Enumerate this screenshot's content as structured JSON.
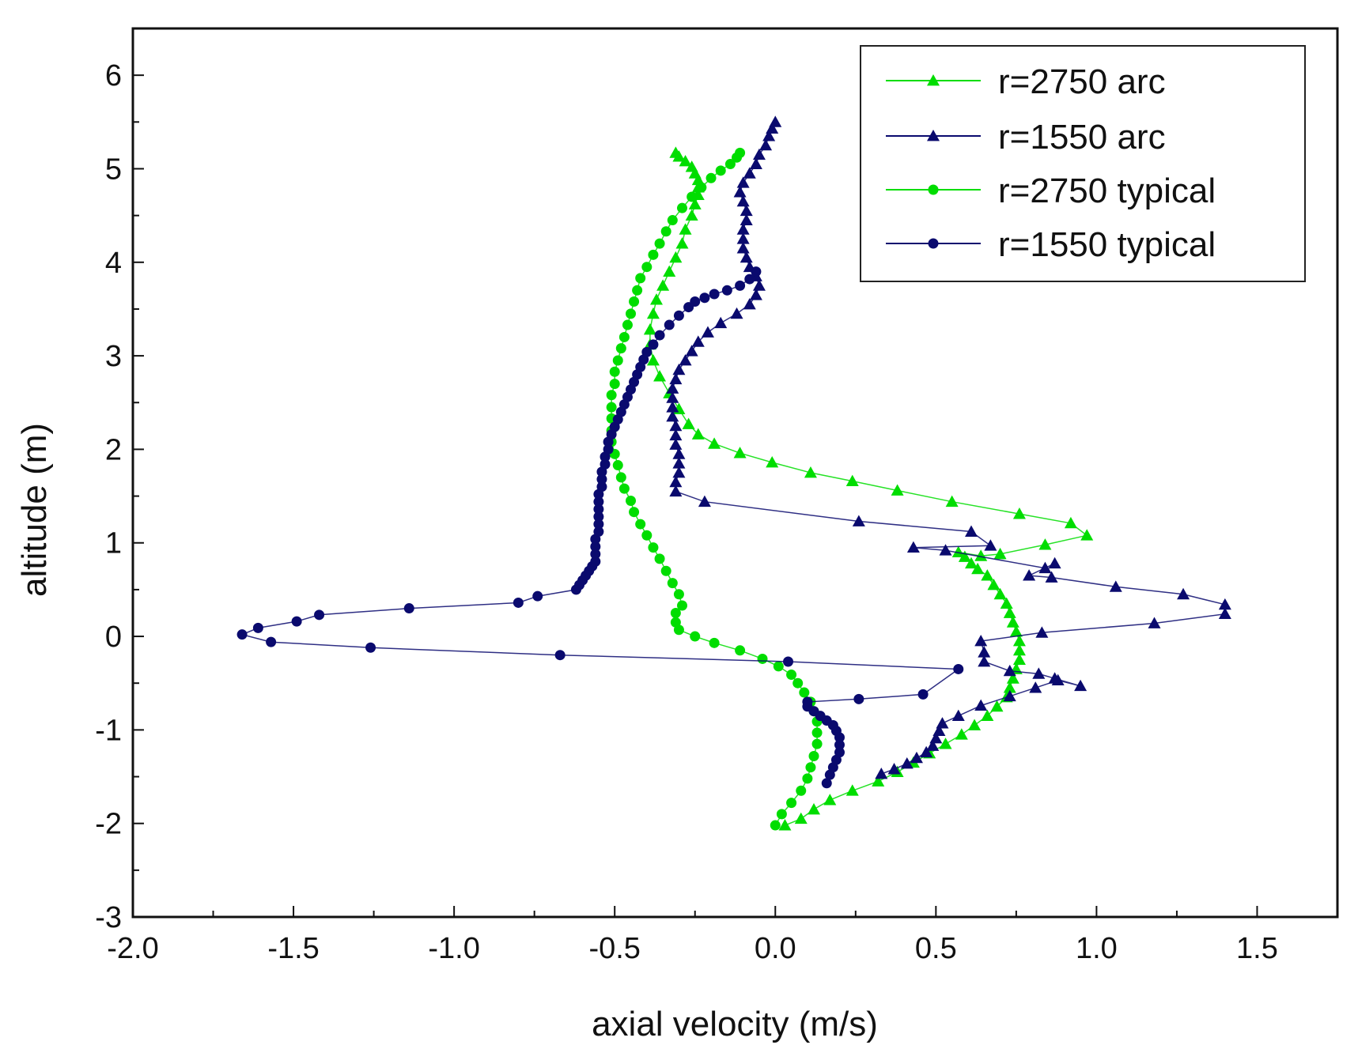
{
  "chart_data": {
    "type": "line",
    "title": "",
    "xlabel": "axial velocity (m/s)",
    "ylabel": "altitude (m)",
    "xlim": [
      -2.0,
      1.75
    ],
    "ylim": [
      -3,
      6.5
    ],
    "xticks": [
      "-2.0",
      "-1.5",
      "-1.0",
      "-0.5",
      "0.0",
      "0.5",
      "1.0",
      "1.5"
    ],
    "xtick_values": [
      -2.0,
      -1.5,
      -1.0,
      -0.5,
      0.0,
      0.5,
      1.0,
      1.5
    ],
    "yticks": [
      "-3",
      "-2",
      "-1",
      "0",
      "1",
      "2",
      "3",
      "4",
      "5",
      "6"
    ],
    "ytick_values": [
      -3,
      -2,
      -1,
      0,
      1,
      2,
      3,
      4,
      5,
      6
    ],
    "grid": false,
    "legend_position": "top-right",
    "series": [
      {
        "name": "r=2750 arc",
        "color": "#00dd00",
        "marker": "triangle",
        "x": [
          0.03,
          0.08,
          0.12,
          0.17,
          0.24,
          0.32,
          0.38,
          0.43,
          0.48,
          0.53,
          0.58,
          0.62,
          0.66,
          0.69,
          0.72,
          0.73,
          0.74,
          0.75,
          0.76,
          0.76,
          0.76,
          0.75,
          0.74,
          0.73,
          0.72,
          0.7,
          0.68,
          0.66,
          0.63,
          0.61,
          0.59,
          0.57,
          0.64,
          0.7,
          0.84,
          0.97,
          0.92,
          0.76,
          0.55,
          0.38,
          0.24,
          0.11,
          -0.01,
          -0.11,
          -0.19,
          -0.24,
          -0.27,
          -0.3,
          -0.33,
          -0.36,
          -0.38,
          -0.39,
          -0.39,
          -0.38,
          -0.37,
          -0.35,
          -0.33,
          -0.31,
          -0.29,
          -0.28,
          -0.26,
          -0.25,
          -0.24,
          -0.24,
          -0.24,
          -0.25,
          -0.26,
          -0.28,
          -0.3,
          -0.31
        ],
        "y": [
          -2.02,
          -1.95,
          -1.85,
          -1.75,
          -1.65,
          -1.55,
          -1.45,
          -1.35,
          -1.25,
          -1.15,
          -1.05,
          -0.95,
          -0.85,
          -0.75,
          -0.65,
          -0.55,
          -0.45,
          -0.35,
          -0.25,
          -0.15,
          -0.05,
          0.05,
          0.15,
          0.25,
          0.35,
          0.45,
          0.55,
          0.65,
          0.72,
          0.78,
          0.85,
          0.9,
          0.86,
          0.88,
          0.98,
          1.08,
          1.21,
          1.31,
          1.44,
          1.56,
          1.66,
          1.75,
          1.86,
          1.96,
          2.06,
          2.16,
          2.27,
          2.43,
          2.6,
          2.78,
          2.95,
          3.12,
          3.28,
          3.45,
          3.6,
          3.75,
          3.9,
          4.05,
          4.2,
          4.35,
          4.5,
          4.62,
          4.72,
          4.8,
          4.88,
          4.95,
          5.02,
          5.08,
          5.13,
          5.17
        ]
      },
      {
        "name": "r=1550 arc",
        "color": "#0a0a6e",
        "marker": "triangle",
        "x": [
          0.33,
          0.37,
          0.41,
          0.44,
          0.47,
          0.49,
          0.5,
          0.51,
          0.52,
          0.57,
          0.64,
          0.73,
          0.81,
          0.88,
          0.95,
          0.87,
          0.82,
          0.73,
          0.65,
          0.65,
          0.64,
          0.83,
          1.18,
          1.4,
          1.4,
          1.27,
          1.06,
          0.86,
          0.79,
          0.87,
          0.84,
          0.53,
          0.43,
          0.67,
          0.61,
          0.26,
          -0.22,
          -0.31,
          -0.31,
          -0.3,
          -0.3,
          -0.3,
          -0.31,
          -0.31,
          -0.31,
          -0.32,
          -0.32,
          -0.32,
          -0.32,
          -0.31,
          -0.3,
          -0.28,
          -0.26,
          -0.24,
          -0.21,
          -0.17,
          -0.12,
          -0.08,
          -0.06,
          -0.05,
          -0.06,
          -0.08,
          -0.09,
          -0.1,
          -0.1,
          -0.1,
          -0.09,
          -0.09,
          -0.1,
          -0.11,
          -0.1,
          -0.08,
          -0.06,
          -0.05,
          -0.03,
          -0.02,
          -0.01,
          0.0
        ],
        "y": [
          -1.47,
          -1.42,
          -1.36,
          -1.3,
          -1.24,
          -1.17,
          -1.09,
          -1.01,
          -0.93,
          -0.85,
          -0.74,
          -0.64,
          -0.55,
          -0.47,
          -0.53,
          -0.45,
          -0.4,
          -0.37,
          -0.27,
          -0.17,
          -0.05,
          0.04,
          0.14,
          0.24,
          0.34,
          0.45,
          0.53,
          0.63,
          0.65,
          0.78,
          0.73,
          0.92,
          0.95,
          0.97,
          1.12,
          1.23,
          1.44,
          1.55,
          1.65,
          1.75,
          1.85,
          1.95,
          2.05,
          2.15,
          2.25,
          2.35,
          2.45,
          2.55,
          2.65,
          2.75,
          2.85,
          2.95,
          3.05,
          3.15,
          3.25,
          3.35,
          3.45,
          3.55,
          3.65,
          3.75,
          3.85,
          3.95,
          4.05,
          4.15,
          4.25,
          4.35,
          4.45,
          4.55,
          4.65,
          4.75,
          4.85,
          4.95,
          5.05,
          5.15,
          5.25,
          5.35,
          5.43,
          5.5
        ]
      },
      {
        "name": "r=2750 typical",
        "color": "#00dd00",
        "marker": "circle",
        "x": [
          0.0,
          0.02,
          0.05,
          0.08,
          0.1,
          0.11,
          0.12,
          0.13,
          0.13,
          0.13,
          0.12,
          0.11,
          0.09,
          0.07,
          0.05,
          0.01,
          -0.04,
          -0.11,
          -0.19,
          -0.25,
          -0.3,
          -0.31,
          -0.31,
          -0.29,
          -0.3,
          -0.32,
          -0.34,
          -0.36,
          -0.38,
          -0.4,
          -0.42,
          -0.44,
          -0.45,
          -0.47,
          -0.48,
          -0.49,
          -0.5,
          -0.51,
          -0.51,
          -0.51,
          -0.51,
          -0.51,
          -0.5,
          -0.5,
          -0.49,
          -0.48,
          -0.47,
          -0.46,
          -0.45,
          -0.44,
          -0.43,
          -0.42,
          -0.4,
          -0.38,
          -0.36,
          -0.34,
          -0.32,
          -0.29,
          -0.26,
          -0.23,
          -0.2,
          -0.17,
          -0.14,
          -0.12,
          -0.11
        ],
        "y": [
          -2.02,
          -1.9,
          -1.78,
          -1.65,
          -1.52,
          -1.4,
          -1.28,
          -1.15,
          -1.03,
          -0.91,
          -0.8,
          -0.7,
          -0.6,
          -0.5,
          -0.41,
          -0.32,
          -0.24,
          -0.15,
          -0.07,
          0.0,
          0.07,
          0.15,
          0.25,
          0.33,
          0.45,
          0.57,
          0.7,
          0.83,
          0.95,
          1.08,
          1.2,
          1.33,
          1.45,
          1.58,
          1.7,
          1.83,
          1.95,
          2.08,
          2.2,
          2.33,
          2.45,
          2.58,
          2.7,
          2.83,
          2.95,
          3.08,
          3.2,
          3.33,
          3.45,
          3.58,
          3.7,
          3.83,
          3.95,
          4.08,
          4.2,
          4.33,
          4.45,
          4.58,
          4.7,
          4.8,
          4.9,
          4.98,
          5.05,
          5.12,
          5.17
        ]
      },
      {
        "name": "r=1550 typical",
        "color": "#0a0a6e",
        "marker": "circle",
        "x": [
          0.16,
          0.17,
          0.18,
          0.19,
          0.2,
          0.2,
          0.2,
          0.19,
          0.18,
          0.16,
          0.14,
          0.12,
          0.1,
          0.1,
          0.26,
          0.46,
          0.57,
          0.04,
          -0.67,
          -1.26,
          -1.57,
          -1.66,
          -1.61,
          -1.49,
          -1.42,
          -1.14,
          -0.8,
          -0.74,
          -0.62,
          -0.61,
          -0.6,
          -0.59,
          -0.58,
          -0.57,
          -0.56,
          -0.56,
          -0.56,
          -0.56,
          -0.55,
          -0.55,
          -0.55,
          -0.55,
          -0.55,
          -0.55,
          -0.54,
          -0.54,
          -0.54,
          -0.53,
          -0.53,
          -0.52,
          -0.52,
          -0.51,
          -0.5,
          -0.49,
          -0.48,
          -0.47,
          -0.46,
          -0.45,
          -0.44,
          -0.43,
          -0.42,
          -0.41,
          -0.4,
          -0.38,
          -0.36,
          -0.33,
          -0.3,
          -0.27,
          -0.25,
          -0.22,
          -0.19,
          -0.15,
          -0.11,
          -0.08,
          -0.06
        ],
        "y": [
          -1.57,
          -1.48,
          -1.4,
          -1.32,
          -1.24,
          -1.16,
          -1.08,
          -1.01,
          -0.95,
          -0.9,
          -0.85,
          -0.8,
          -0.75,
          -0.7,
          -0.67,
          -0.62,
          -0.35,
          -0.27,
          -0.2,
          -0.12,
          -0.06,
          0.02,
          0.09,
          0.16,
          0.23,
          0.3,
          0.36,
          0.43,
          0.5,
          0.55,
          0.6,
          0.65,
          0.7,
          0.75,
          0.8,
          0.88,
          0.96,
          1.04,
          1.12,
          1.2,
          1.28,
          1.36,
          1.44,
          1.52,
          1.6,
          1.68,
          1.76,
          1.84,
          1.92,
          2.0,
          2.08,
          2.16,
          2.24,
          2.32,
          2.4,
          2.48,
          2.56,
          2.64,
          2.72,
          2.8,
          2.88,
          2.96,
          3.04,
          3.12,
          3.22,
          3.33,
          3.43,
          3.52,
          3.58,
          3.62,
          3.66,
          3.7,
          3.75,
          3.82,
          3.9
        ]
      }
    ]
  }
}
